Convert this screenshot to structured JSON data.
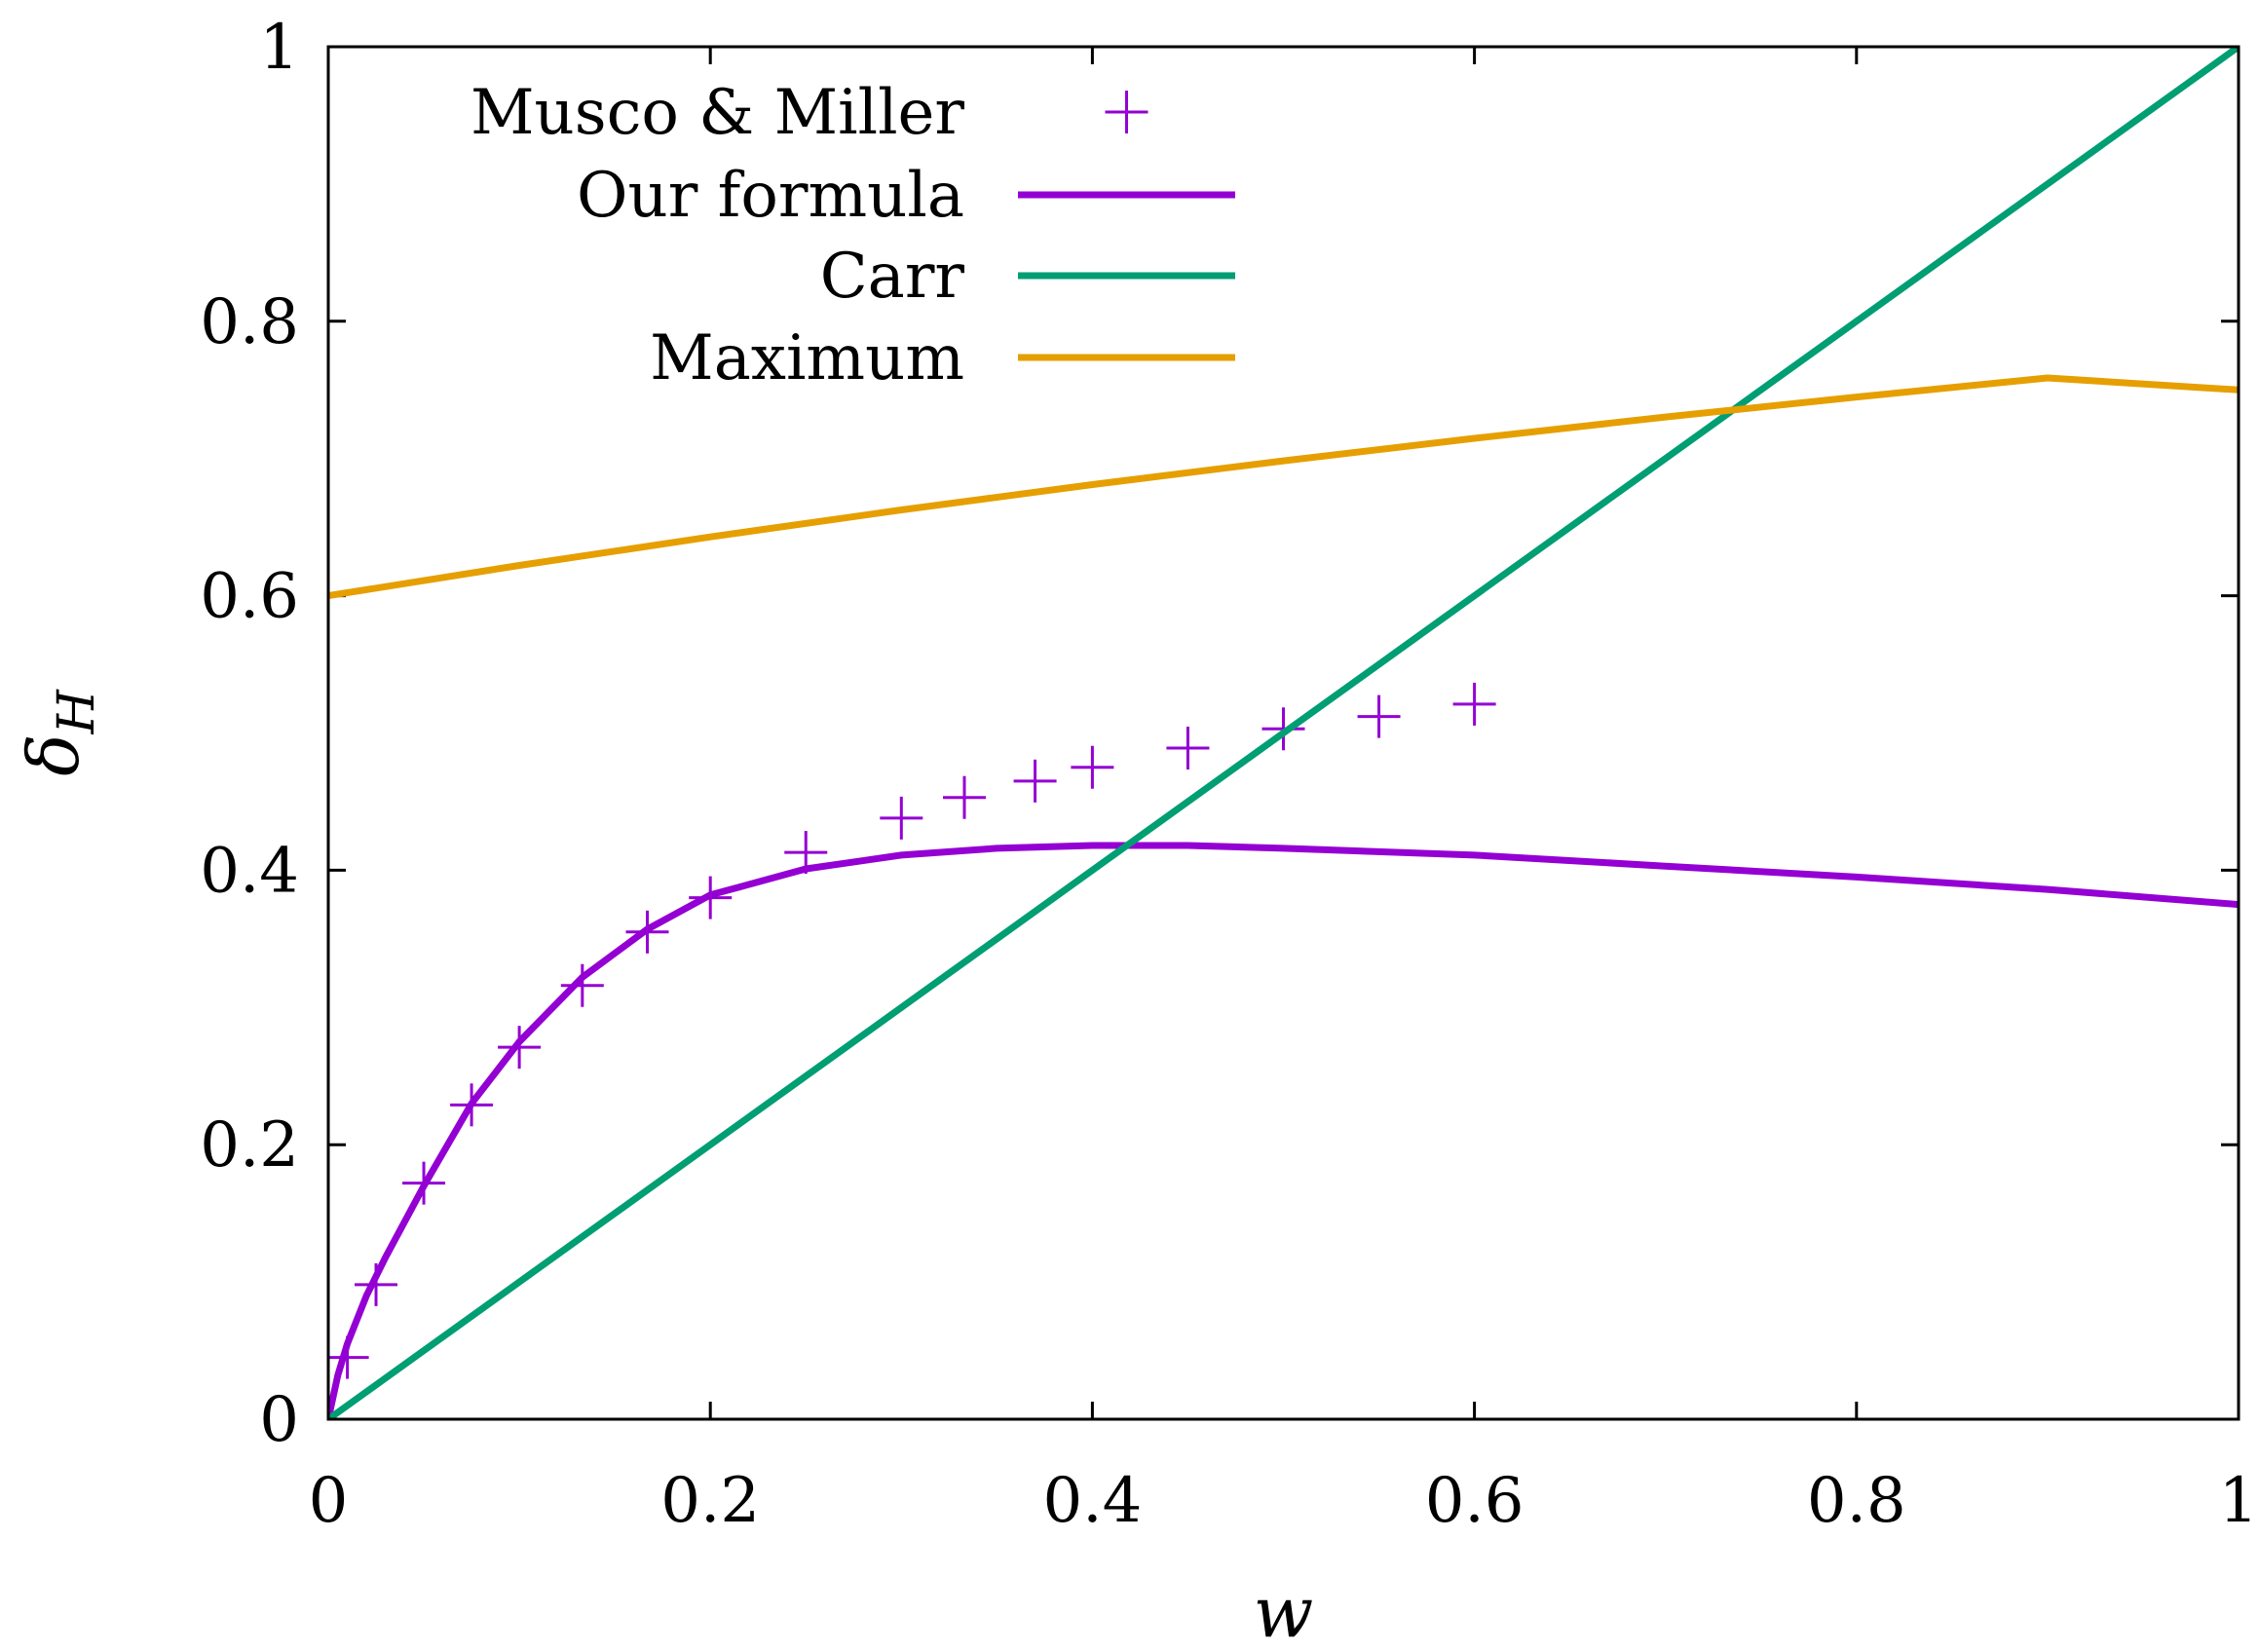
{
  "chart_data": {
    "type": "line",
    "title": "",
    "xlabel": "w",
    "ylabel": "δ",
    "ylabel_sub": "H",
    "xlim": [
      0,
      1
    ],
    "ylim": [
      0,
      1
    ],
    "xticks": [
      0,
      0.2,
      0.4,
      0.6,
      0.8,
      1
    ],
    "yticks": [
      0,
      0.2,
      0.4,
      0.6,
      0.8,
      1
    ],
    "xtick_labels": [
      "0",
      "0.2",
      "0.4",
      "0.6",
      "0.8",
      "1"
    ],
    "ytick_labels": [
      "0",
      "0.2",
      "0.4",
      "0.6",
      "0.8",
      "1"
    ],
    "grid": false,
    "legend_position": "top-left",
    "series": [
      {
        "name": "Musco & Miller",
        "style": "markers",
        "marker": "plus",
        "color": "#9400d3",
        "x": [
          0.01,
          0.025,
          0.05,
          0.075,
          0.1,
          0.133,
          0.167,
          0.2,
          0.25,
          0.3,
          0.333,
          0.37,
          0.4,
          0.45,
          0.5,
          0.55,
          0.6
        ],
        "y": [
          0.045,
          0.098,
          0.172,
          0.229,
          0.271,
          0.316,
          0.355,
          0.38,
          0.413,
          0.438,
          0.453,
          0.465,
          0.475,
          0.489,
          0.503,
          0.512,
          0.521
        ]
      },
      {
        "name": "Our formula",
        "style": "line",
        "color": "#9400d3",
        "x": [
          0,
          0.005,
          0.01,
          0.02,
          0.03,
          0.05,
          0.075,
          0.1,
          0.133,
          0.167,
          0.2,
          0.25,
          0.3,
          0.35,
          0.4,
          0.45,
          0.5,
          0.6,
          0.7,
          0.8,
          0.9,
          1.0
        ],
        "y": [
          0,
          0.032,
          0.055,
          0.09,
          0.118,
          0.17,
          0.23,
          0.275,
          0.322,
          0.357,
          0.382,
          0.401,
          0.411,
          0.416,
          0.418,
          0.418,
          0.416,
          0.411,
          0.403,
          0.395,
          0.386,
          0.375
        ]
      },
      {
        "name": "Carr",
        "style": "line",
        "color": "#009e73",
        "x": [
          0,
          1
        ],
        "y": [
          0,
          1
        ]
      },
      {
        "name": "Maximum",
        "style": "line",
        "color": "#e69f00",
        "x": [
          0,
          0.1,
          0.2,
          0.3,
          0.4,
          0.5,
          0.6,
          0.7,
          0.8,
          0.9,
          1.0
        ],
        "y": [
          0.6,
          0.6221,
          0.6429,
          0.6625,
          0.681,
          0.6983,
          0.7147,
          0.7302,
          0.7448,
          0.7587,
          0.75
        ]
      }
    ]
  }
}
